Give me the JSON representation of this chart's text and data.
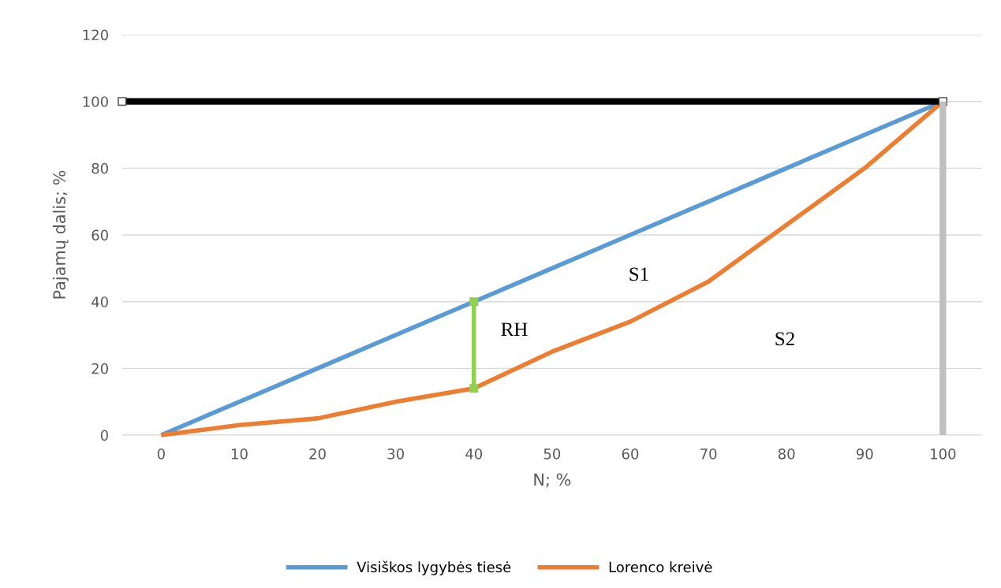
{
  "chart_data": {
    "type": "line",
    "xlabel": "N; %",
    "ylabel": "Pajamų dalis; %",
    "xlim": [
      -5,
      105
    ],
    "xticks": [
      0,
      10,
      20,
      30,
      40,
      50,
      60,
      70,
      80,
      90,
      100
    ],
    "ylim": [
      0,
      120
    ],
    "yticks": [
      0,
      20,
      40,
      60,
      80,
      100,
      120
    ],
    "grid": "y",
    "legend": "bottom",
    "marker": "none",
    "line_style": "solid",
    "series": [
      {
        "name": "Visiškos lygybės tiesė",
        "color": "#5b9bd5",
        "x": [
          0,
          10,
          20,
          30,
          40,
          50,
          60,
          70,
          80,
          90,
          100
        ],
        "values": [
          0,
          10,
          20,
          30,
          40,
          50,
          60,
          70,
          80,
          90,
          100
        ]
      },
      {
        "name": "Lorenco kreivė",
        "color": "#ed7d31",
        "x": [
          0,
          10,
          20,
          30,
          40,
          50,
          60,
          70,
          80,
          90,
          100
        ],
        "values": [
          0,
          3,
          5,
          10,
          14,
          25,
          34,
          46,
          63,
          80,
          100
        ]
      },
      {
        "color": "#000000",
        "x": [
          -5,
          100
        ],
        "values": [
          100,
          100
        ],
        "marker": "square"
      },
      {
        "color": "#bfbfbf",
        "x": [
          100,
          100
        ],
        "values": [
          0,
          100
        ]
      },
      {
        "color": "#92d050",
        "x": [
          40,
          40
        ],
        "values": [
          14,
          40
        ],
        "marker": "square"
      }
    ],
    "annotations": [
      "RH",
      "S1",
      "S2"
    ]
  }
}
